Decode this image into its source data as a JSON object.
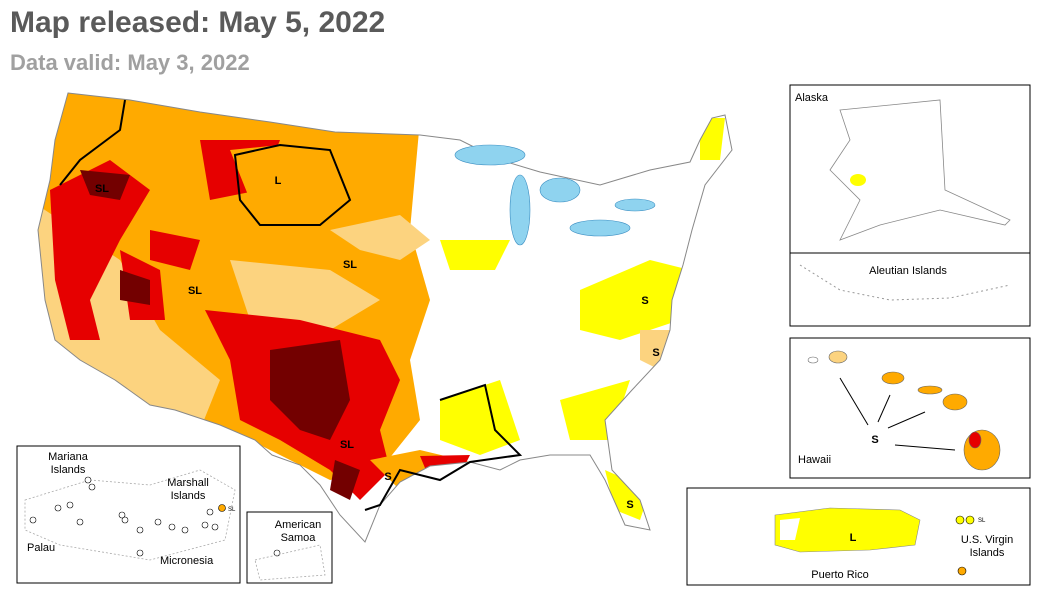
{
  "header": {
    "title": "Map released: May 5, 2022",
    "subtitle": "Data valid: May 3, 2022"
  },
  "insets": {
    "alaska": "Alaska",
    "aleutian": "Aleutian Islands",
    "hawaii": "Hawaii",
    "puerto_rico": "Puerto Rico",
    "virgin_islands": [
      "U.S. Virgin",
      "Islands"
    ],
    "mariana": [
      "Mariana",
      "Islands"
    ],
    "marshall": [
      "Marshall",
      "Islands"
    ],
    "palau": "Palau",
    "micronesia": "Micronesia",
    "american_samoa": [
      "American",
      "Samoa"
    ]
  },
  "impact_labels": [
    "SL",
    "L",
    "SL",
    "SL",
    "SL",
    "S",
    "S",
    "S",
    "S",
    "S",
    "L",
    "SL",
    "SL"
  ]
}
